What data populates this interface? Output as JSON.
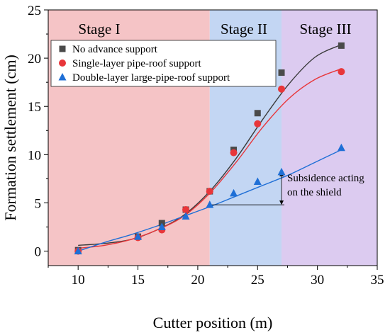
{
  "chart_data": {
    "type": "scatter",
    "xlabel": "Cutter position (m)",
    "ylabel": "Formation settlement (cm)",
    "xlim": [
      7.5,
      35
    ],
    "ylim": [
      -1.5,
      25
    ],
    "x_ticks": [
      10,
      15,
      20,
      25,
      30,
      35
    ],
    "y_ticks": [
      0,
      5,
      10,
      15,
      20,
      25
    ],
    "grid": false,
    "legend_position": "top-left",
    "stages": [
      {
        "label": "Stage I",
        "x_range": [
          7.5,
          21
        ],
        "color": "#f5c4c6"
      },
      {
        "label": "Stage II",
        "x_range": [
          21,
          27
        ],
        "color": "#c3d6f3"
      },
      {
        "label": "Stage III",
        "x_range": [
          27,
          35
        ],
        "color": "#dccbf0"
      }
    ],
    "series": [
      {
        "name": "No advance support",
        "marker": "square",
        "color": "#4a4a4a",
        "line_color": "#3a3a3a",
        "x": [
          10,
          15,
          17,
          19,
          21,
          23,
          25,
          27,
          32
        ],
        "y": [
          0.1,
          1.5,
          2.9,
          4.3,
          6.2,
          10.5,
          14.3,
          18.5,
          21.3
        ],
        "fit": [
          0.6,
          0.8,
          1.2,
          2.2,
          3.7,
          6.2,
          9.6,
          13.6,
          17.3,
          20.1,
          21.4
        ]
      },
      {
        "name": "Single-layer pipe-roof support",
        "marker": "circle",
        "color": "#e8363a",
        "line_color": "#e8363a",
        "x": [
          10,
          15,
          17,
          19,
          21,
          23,
          25,
          27,
          32
        ],
        "y": [
          0.0,
          1.4,
          2.2,
          4.3,
          6.2,
          10.2,
          13.2,
          16.8,
          18.6
        ],
        "fit": [
          0.3,
          0.6,
          1.2,
          2.2,
          3.6,
          6.0,
          9.2,
          12.8,
          15.8,
          17.8,
          18.9
        ]
      },
      {
        "name": "Double-layer large-pipe-roof support",
        "marker": "triangle",
        "color": "#1f6fd6",
        "line_color": "#1f6fd6",
        "x": [
          10,
          15,
          17,
          19,
          21,
          23,
          25,
          27,
          32
        ],
        "y": [
          0.0,
          1.5,
          2.5,
          3.6,
          4.8,
          6.0,
          7.2,
          8.2,
          10.7
        ],
        "fit": [
          0.0,
          0.9,
          1.7,
          2.6,
          3.6,
          4.6,
          5.7,
          6.8,
          7.9,
          9.2,
          10.5
        ]
      }
    ],
    "annotation": {
      "text_line1": "Subsidence acting",
      "text_line2": "on the shield",
      "x": 27,
      "y_from": 8.2,
      "y_to": 4.8,
      "ref_x_from": 21
    }
  }
}
